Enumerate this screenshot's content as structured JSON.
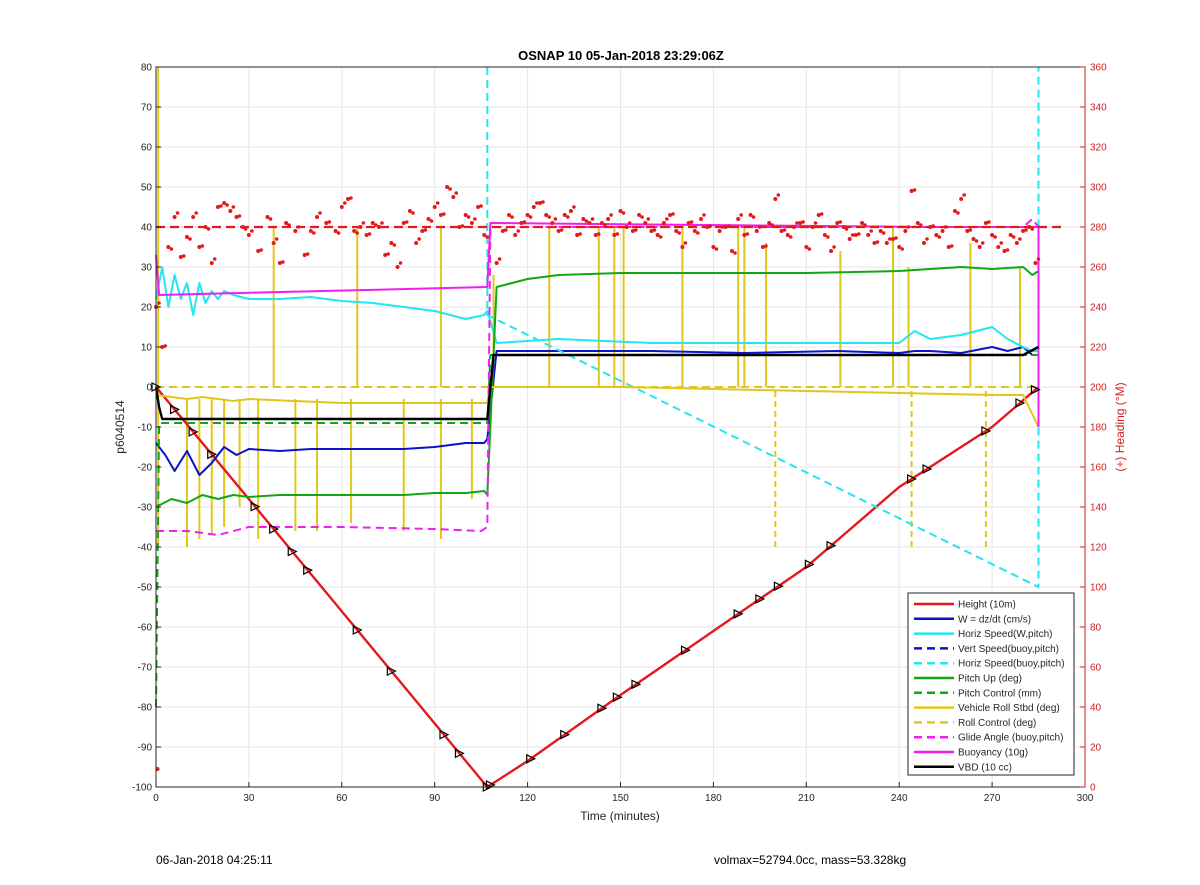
{
  "figure": {
    "footer_left": "06-Jan-2018 04:25:11",
    "footer_right": "volmax=52794.0cc, mass=53.328kg"
  },
  "chart_data": {
    "type": "line",
    "title": "OSNAP 10 05-Jan-2018 23:29:06Z",
    "xlabel": "Time (minutes)",
    "ylabel": "p6040514",
    "y2label": "(+) Heading (°M)",
    "xlim": [
      0,
      300
    ],
    "ylim": [
      -100,
      80
    ],
    "y2lim": [
      0,
      360
    ],
    "xticks": [
      0,
      30,
      60,
      90,
      120,
      150,
      180,
      210,
      240,
      270,
      300
    ],
    "yticks": [
      -100,
      -90,
      -80,
      -70,
      -60,
      -50,
      -40,
      -30,
      -20,
      -10,
      0,
      10,
      20,
      30,
      40,
      50,
      60,
      70,
      80
    ],
    "y2ticks": [
      0,
      20,
      40,
      60,
      80,
      100,
      120,
      140,
      160,
      180,
      200,
      220,
      240,
      260,
      280,
      300,
      320,
      340,
      360
    ],
    "grid": true,
    "legend_position": "bottom-right",
    "colors": {
      "red": "#e3191c",
      "blue": "#0a14c8",
      "cyan": "#22e6f0",
      "green": "#10a810",
      "yellow": "#e3c61a",
      "magenta": "#f01ef0",
      "black": "#000000",
      "axis_right": "#d21e1e"
    },
    "series": [
      {
        "name": "Height (10m)",
        "color": "red",
        "dash": false,
        "x": [
          0,
          107,
          108,
          120,
          150,
          180,
          210,
          240,
          270,
          285
        ],
        "y": [
          0,
          -100,
          -99.5,
          -93.5,
          -77,
          -61,
          -45,
          -25,
          -10,
          0
        ]
      },
      {
        "name": "W = dz/dt (cm/s)",
        "color": "blue",
        "dash": false,
        "x": [
          0,
          3,
          6,
          10,
          14,
          18,
          22,
          26,
          30,
          40,
          50,
          60,
          70,
          80,
          90,
          100,
          106,
          107,
          110,
          130,
          160,
          190,
          220,
          240,
          245,
          250,
          260,
          270,
          275,
          280,
          283,
          285
        ],
        "y": [
          -14,
          -17,
          -21,
          -16,
          -22,
          -19,
          -15,
          -17,
          -15.5,
          -16,
          -15.5,
          -15.5,
          -15.5,
          -15.5,
          -15,
          -14,
          -14,
          -13,
          9,
          9,
          9,
          8.5,
          9,
          8.5,
          9,
          9,
          8.5,
          10,
          9,
          10,
          8,
          8
        ]
      },
      {
        "name": "Horiz Speed(W,pitch)",
        "color": "cyan",
        "dash": false,
        "x": [
          0,
          2,
          4,
          6,
          8,
          10,
          12,
          14,
          16,
          18,
          20,
          22,
          25,
          30,
          40,
          50,
          60,
          70,
          80,
          90,
          100,
          106,
          107,
          110,
          130,
          160,
          190,
          220,
          240,
          245,
          250,
          260,
          270,
          275,
          280,
          283,
          285
        ],
        "y": [
          22,
          30,
          20,
          28,
          22,
          26,
          18,
          26,
          21,
          24,
          22,
          24,
          23,
          22,
          22,
          22.5,
          21.5,
          21,
          20,
          19,
          17,
          18,
          19,
          11,
          12,
          11,
          11,
          11,
          11,
          14,
          12,
          13,
          15,
          12,
          10,
          9,
          9
        ]
      },
      {
        "name": "Vert Speed(buoy,pitch)",
        "color": "blue",
        "dash": true,
        "x": [],
        "y": []
      },
      {
        "name": "Horiz Speed(buoy,pitch)",
        "color": "cyan",
        "dash": true,
        "x": [
          107,
          107,
          107,
          285,
          285
        ],
        "y": [
          80,
          55,
          18,
          -50,
          80
        ]
      },
      {
        "name": "Pitch Up (deg)",
        "color": "green",
        "dash": false,
        "x": [
          0,
          5,
          10,
          15,
          20,
          25,
          30,
          40,
          50,
          60,
          70,
          80,
          90,
          100,
          106,
          107,
          110,
          120,
          130,
          150,
          180,
          210,
          240,
          260,
          270,
          280,
          283,
          285
        ],
        "y": [
          -30,
          -28,
          -29,
          -27,
          -28,
          -27,
          -27.5,
          -27,
          -27,
          -27,
          -27,
          -27,
          -26.5,
          -26.5,
          -26,
          -27,
          25,
          27,
          28,
          28.5,
          28.5,
          28.5,
          29,
          30,
          29.5,
          30,
          28,
          29
        ]
      },
      {
        "name": "Pitch Control (mm)",
        "color": "green",
        "dash": true,
        "x": [
          0,
          1,
          107,
          108,
          285
        ],
        "y": [
          -80,
          -9,
          -9,
          8,
          8
        ]
      },
      {
        "name": "Vehicle Roll Stbd (deg)",
        "color": "yellow",
        "dash": false,
        "x": [
          0,
          5,
          10,
          15,
          20,
          25,
          30,
          60,
          90,
          107,
          108,
          120,
          150,
          180,
          210,
          240,
          270,
          280,
          285
        ],
        "y": [
          -2,
          -2.5,
          -3,
          -2.5,
          -3,
          -3.5,
          -3,
          -4,
          -4,
          -4,
          0,
          0,
          0,
          -0.5,
          -1,
          -1.5,
          -2,
          -2,
          -10
        ]
      },
      {
        "name": "Roll Control (deg)",
        "color": "yellow",
        "dash": true,
        "x": [
          0,
          107,
          108,
          285
        ],
        "y": [
          0,
          0,
          0,
          0
        ]
      },
      {
        "name": "Glide Angle (buoy,pitch)",
        "color": "magenta",
        "dash": true,
        "x": [
          0,
          10,
          20,
          30,
          60,
          90,
          105,
          107,
          108,
          150,
          200,
          250,
          280,
          283,
          285
        ],
        "y": [
          -36,
          -36,
          -37,
          -35,
          -35,
          -35.5,
          -36,
          -35,
          40,
          40,
          40,
          40,
          40,
          42,
          40
        ]
      },
      {
        "name": "Buoyancy (10g)",
        "color": "magenta",
        "dash": false,
        "x": [
          0,
          1,
          107,
          108,
          250,
          283,
          285,
          285
        ],
        "y": [
          33,
          23,
          25,
          41,
          40,
          40,
          40,
          -10
        ]
      },
      {
        "name": "VBD (10 cc)",
        "color": "black",
        "dash": false,
        "x": [
          0,
          1,
          2,
          107,
          109,
          110,
          280,
          285
        ],
        "y": [
          0,
          -5,
          -8,
          -8,
          8,
          8,
          8,
          10
        ]
      }
    ],
    "heading_series": {
      "name": "Heading (°M)",
      "axis": "right",
      "marker": "dot",
      "color": "red",
      "target": 280,
      "x": [
        0,
        2,
        4,
        6,
        8,
        10,
        12,
        14,
        16,
        18,
        20,
        22,
        24,
        26,
        28,
        30,
        33,
        36,
        38,
        40,
        42,
        45,
        48,
        50,
        52,
        55,
        58,
        60,
        62,
        64,
        66,
        68,
        70,
        72,
        74,
        76,
        78,
        80,
        82,
        84,
        86,
        88,
        90,
        92,
        94,
        96,
        98,
        100,
        102,
        104,
        106,
        110,
        112,
        114,
        116,
        118,
        120,
        122,
        124,
        126,
        128,
        130,
        132,
        134,
        136,
        138,
        140,
        142,
        144,
        146,
        148,
        150,
        152,
        154,
        156,
        158,
        160,
        162,
        164,
        166,
        168,
        170,
        172,
        174,
        176,
        178,
        180,
        182,
        184,
        186,
        188,
        190,
        192,
        194,
        196,
        198,
        200,
        202,
        204,
        206,
        208,
        210,
        212,
        214,
        216,
        218,
        220,
        222,
        224,
        226,
        228,
        230,
        232,
        234,
        236,
        238,
        240,
        242,
        244,
        246,
        248,
        250,
        252,
        254,
        256,
        258,
        260,
        262,
        264,
        266,
        268,
        270,
        272,
        274,
        276,
        278,
        280,
        282,
        284
      ],
      "y": [
        240,
        220,
        270,
        285,
        265,
        275,
        285,
        270,
        280,
        262,
        290,
        292,
        288,
        285,
        280,
        276,
        268,
        285,
        272,
        262,
        282,
        278,
        266,
        278,
        285,
        282,
        278,
        290,
        294,
        278,
        280,
        276,
        282,
        280,
        266,
        272,
        260,
        282,
        288,
        272,
        278,
        284,
        290,
        286,
        300,
        295,
        280,
        286,
        282,
        290,
        276,
        262,
        278,
        286,
        276,
        282,
        286,
        290,
        292,
        286,
        282,
        278,
        286,
        288,
        276,
        284,
        282,
        276,
        282,
        284,
        276,
        288,
        280,
        278,
        286,
        282,
        278,
        276,
        282,
        286,
        278,
        270,
        282,
        278,
        284,
        280,
        270,
        278,
        280,
        268,
        284,
        276,
        286,
        278,
        270,
        282,
        294,
        278,
        276,
        280,
        282,
        270,
        280,
        286,
        276,
        268,
        282,
        280,
        274,
        276,
        282,
        276,
        272,
        278,
        272,
        274,
        270,
        278,
        298,
        282,
        272,
        280,
        276,
        278,
        270,
        288,
        294,
        278,
        274,
        270,
        282,
        276,
        270,
        268,
        276,
        272,
        278,
        280,
        262
      ]
    },
    "markers_on_height": {
      "shape": "triangle",
      "x": [
        0,
        6,
        12,
        18,
        32,
        38,
        44,
        49,
        65,
        76,
        93,
        98,
        107,
        108,
        121,
        132,
        144,
        149,
        155,
        171,
        188,
        195,
        201,
        211,
        218,
        244,
        249,
        268,
        279,
        284
      ]
    },
    "legend": [
      "Height (10m)",
      "W = dz/dt (cm/s)",
      "Horiz Speed(W,pitch)",
      "Vert Speed(buoy,pitch)",
      "Horiz Speed(buoy,pitch)",
      "Pitch Up (deg)",
      "Pitch Control (mm)",
      "Vehicle Roll Stbd (deg)",
      "Roll Control (deg)",
      "Glide Angle (buoy,pitch)",
      "Buoyancy (10g)",
      "VBD (10 cc)"
    ]
  }
}
